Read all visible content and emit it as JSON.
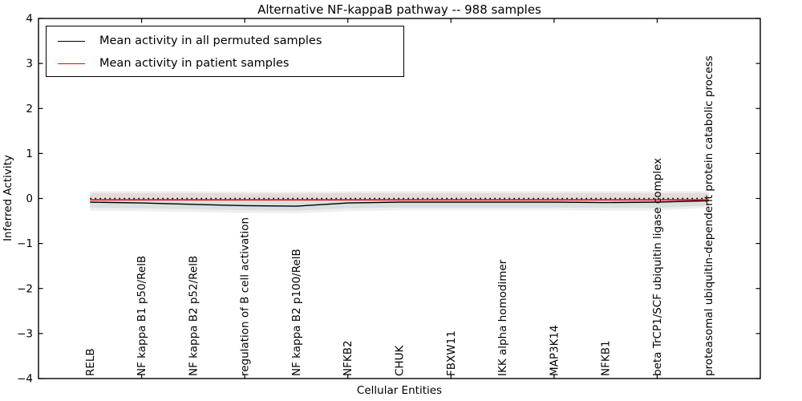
{
  "chart_data": {
    "type": "line",
    "title": "Alternative NF-kappaB pathway -- 988 samples",
    "xlabel": "Cellular Entities",
    "ylabel": "Inferred Activity",
    "ylim": [
      -4,
      4
    ],
    "yticks": [
      4,
      3,
      2,
      1,
      0,
      -1,
      -2,
      -3,
      -4
    ],
    "xtick_indices": [
      1,
      3,
      5,
      7,
      9,
      11
    ],
    "grid": false,
    "legend_position": "upper left",
    "frame_color": "#000000",
    "categories": [
      "RELB",
      "NF kappa B1 p50/RelB",
      "NF kappa B2 p52/RelB",
      "regulation of B cell activation",
      "NF kappa B2 p100/RelB",
      "NFKB2",
      "CHUK",
      "FBXW11",
      "IKK alpha homodimer",
      "MAP3K14",
      "NFKB1",
      "beta TrCP1/SCF ubiquitin ligase complex",
      "proteasomal ubiquitin-dependent protein catabolic process"
    ],
    "series": [
      {
        "name": "Mean activity in all permuted samples",
        "color": "#000000",
        "style": "solid",
        "values": [
          -0.08,
          -0.1,
          -0.13,
          -0.16,
          -0.17,
          -0.1,
          -0.08,
          -0.08,
          -0.08,
          -0.08,
          -0.09,
          -0.08,
          -0.05
        ]
      },
      {
        "name": "Mean activity in patient samples",
        "color": "#ff0000",
        "style": "solid",
        "values": [
          -0.03,
          -0.03,
          -0.03,
          -0.03,
          -0.03,
          -0.03,
          -0.03,
          -0.03,
          -0.03,
          -0.03,
          -0.03,
          -0.03,
          -0.03
        ]
      }
    ],
    "reference_line": {
      "value": 0,
      "color": "#000000",
      "style": "dotted"
    },
    "bands": [
      {
        "name": "outer permutation band",
        "color": "#efefef",
        "upper": [
          0.16,
          0.16,
          0.16,
          0.15,
          0.15,
          0.16,
          0.16,
          0.16,
          0.16,
          0.16,
          0.16,
          0.16,
          0.16
        ],
        "lower": [
          -0.27,
          -0.28,
          -0.3,
          -0.32,
          -0.33,
          -0.28,
          -0.26,
          -0.26,
          -0.26,
          -0.26,
          -0.27,
          -0.27,
          -0.21
        ]
      },
      {
        "name": "inner permutation band",
        "color": "#dedede",
        "upper": [
          0.12,
          0.12,
          0.12,
          0.11,
          0.11,
          0.12,
          0.12,
          0.12,
          0.12,
          0.12,
          0.12,
          0.12,
          0.12
        ],
        "lower": [
          -0.21,
          -0.22,
          -0.24,
          -0.26,
          -0.27,
          -0.22,
          -0.2,
          -0.2,
          -0.2,
          -0.2,
          -0.21,
          -0.21,
          -0.16
        ]
      }
    ]
  }
}
